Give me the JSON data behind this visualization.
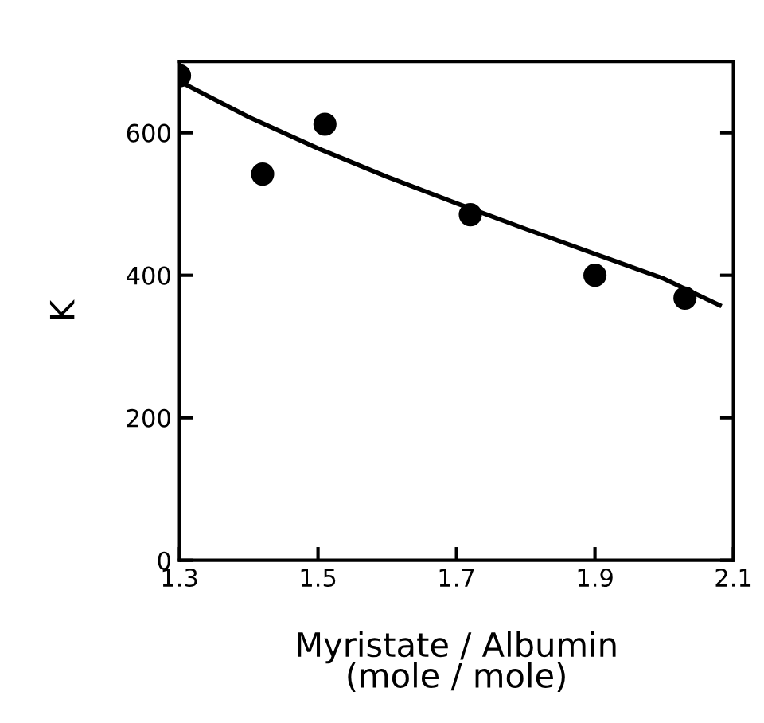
{
  "chart_data": {
    "type": "scatter",
    "xlabel": "Myristate / Albumin\n(mole / mole)",
    "ylabel": "K",
    "xlim": [
      1.3,
      2.1
    ],
    "ylim": [
      0,
      700
    ],
    "xticks": [
      1.3,
      1.5,
      1.7,
      1.9,
      2.1
    ],
    "yticks": [
      0,
      200,
      400,
      600
    ],
    "grid": false,
    "legend": false,
    "series": [
      {
        "color": "#000000",
        "marker": "circle",
        "x": [
          1.3,
          1.42,
          1.51,
          1.72,
          1.9,
          2.03
        ],
        "values": [
          680,
          542,
          612,
          485,
          400,
          368
        ]
      },
      {
        "type": "line",
        "color": "#000000",
        "marker": "none",
        "line_style": "solid",
        "x": [
          1.3,
          1.4,
          1.5,
          1.6,
          1.7,
          1.8,
          1.9,
          2.0,
          2.08
        ],
        "values": [
          672,
          622,
          578,
          538,
          501,
          465,
          430,
          395,
          358
        ]
      }
    ]
  }
}
